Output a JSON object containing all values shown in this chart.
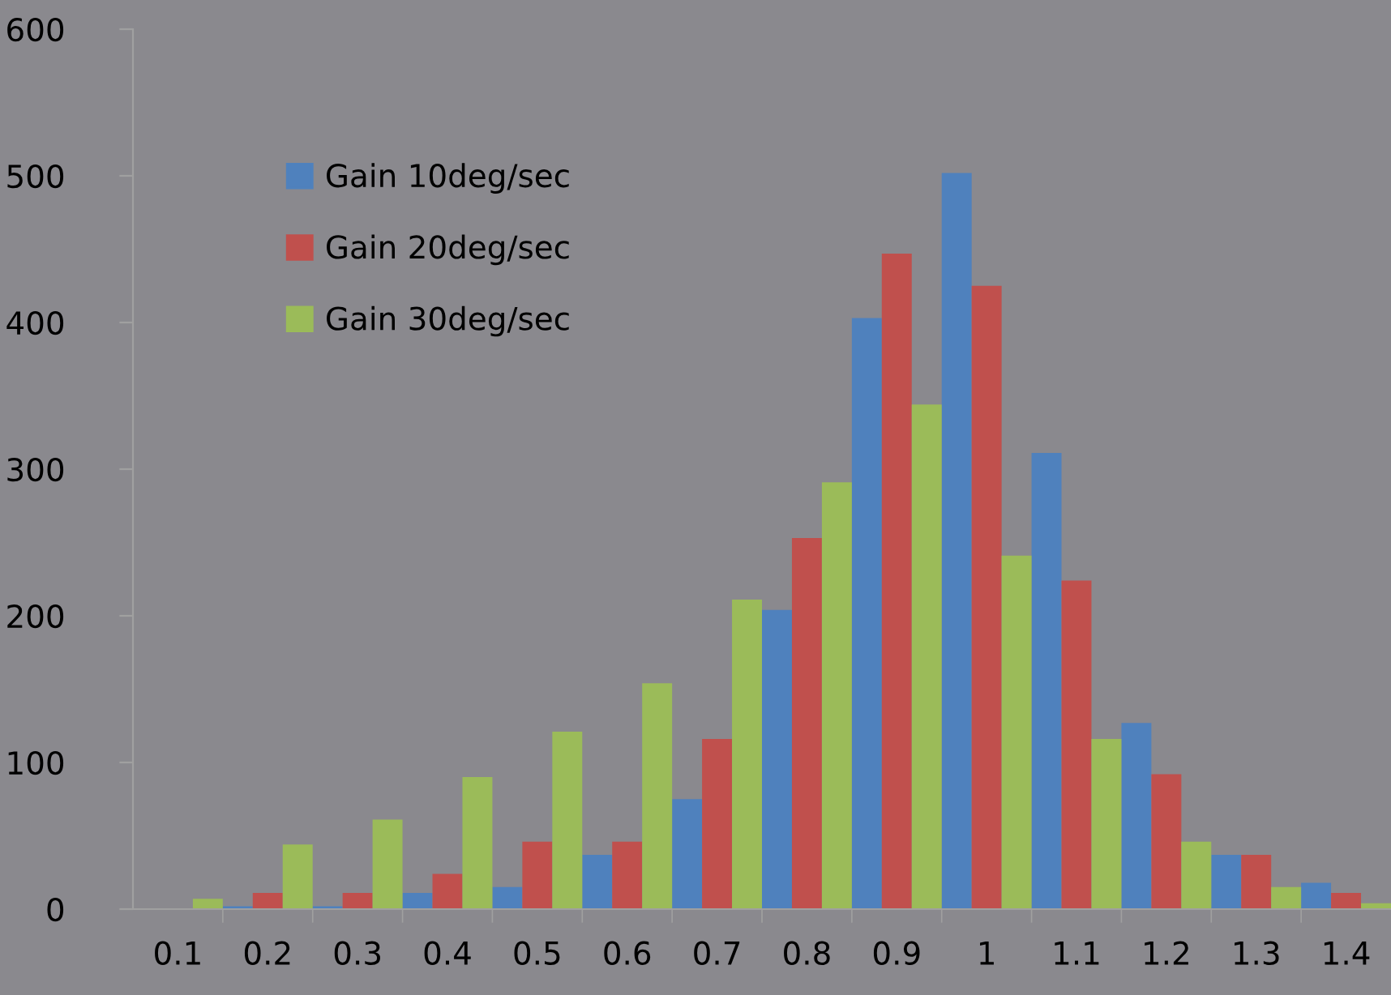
{
  "chart_data": {
    "type": "bar",
    "categories": [
      "0.1",
      "0.2",
      "0.3",
      "0.4",
      "0.5",
      "0.6",
      "0.7",
      "0.8",
      "0.9",
      "1",
      "1.1",
      "1.2",
      "1.3",
      "1.4"
    ],
    "series": [
      {
        "name": "Gain 10deg/sec",
        "color": "#4f81bd",
        "values": [
          0,
          2,
          2,
          11,
          15,
          37,
          75,
          204,
          403,
          502,
          311,
          127,
          37,
          18
        ]
      },
      {
        "name": "Gain 20deg/sec",
        "color": "#c0504d",
        "values": [
          0,
          11,
          11,
          24,
          46,
          46,
          116,
          253,
          447,
          425,
          224,
          92,
          37,
          11
        ]
      },
      {
        "name": "Gain 30deg/sec",
        "color": "#9bbb59",
        "values": [
          7,
          44,
          61,
          90,
          121,
          154,
          211,
          291,
          344,
          241,
          116,
          46,
          15,
          4
        ]
      }
    ],
    "ylim": [
      0,
      600
    ],
    "yticks": [
      0,
      100,
      200,
      300,
      400,
      500,
      600
    ],
    "grid": false,
    "legend": "top left"
  }
}
